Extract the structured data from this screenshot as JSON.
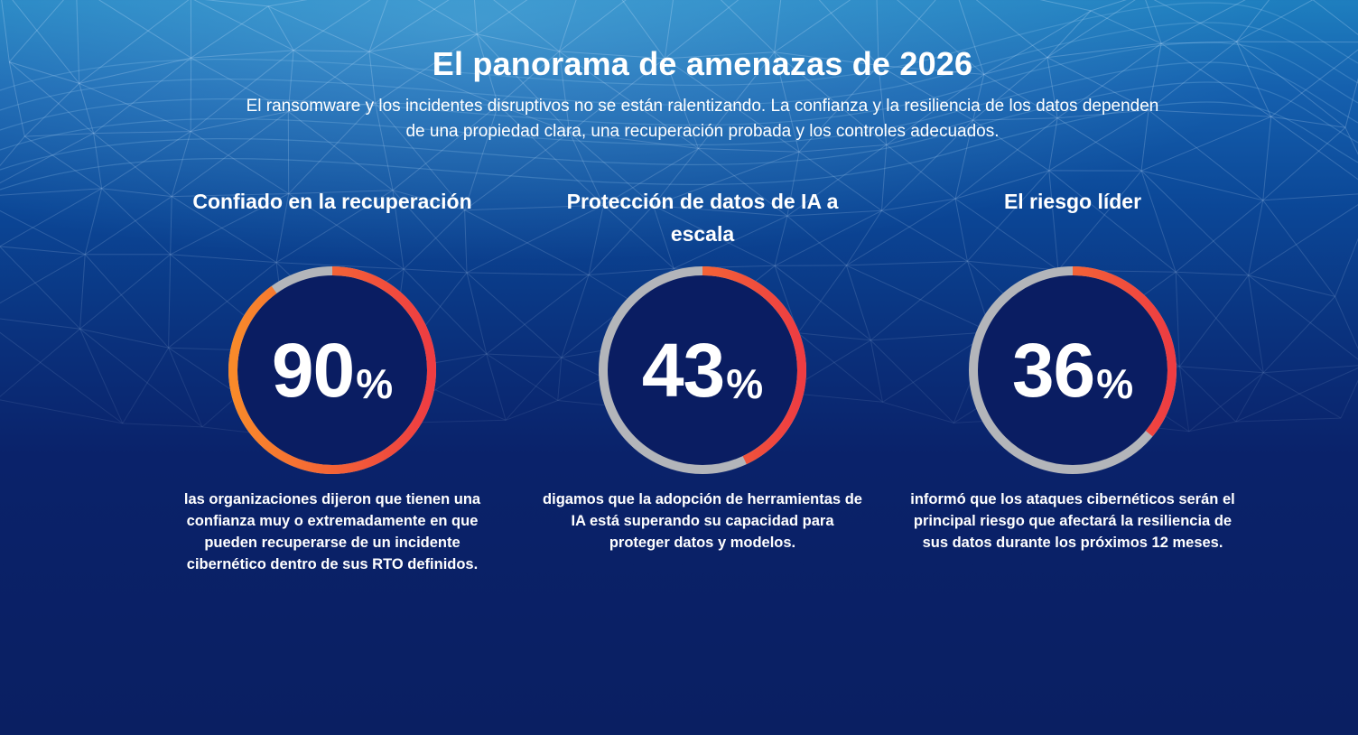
{
  "header": {
    "title": "El panorama de amenazas de 2026",
    "subtitle": "El ransomware y los incidentes disruptivos no se están ralentizando. La confianza y la resiliencia de los datos dependen de una propiedad clara, una recuperación probada y los controles adecuados."
  },
  "colors": {
    "background_top": "#1e7fbf",
    "background_bottom": "#0a1f62",
    "ring_inner": "#0a1d62",
    "ring_track": "#b3b5ba",
    "ring_progress_start": "#f98a2a",
    "ring_progress_end": "#ee3c42",
    "text": "#ffffff"
  },
  "chart_data": [
    {
      "type": "pie",
      "title": "Confiado en la recuperación",
      "value": 90,
      "unit": "%",
      "description": "las organizaciones dijeron que tienen una confianza muy o extremadamente en que pueden recuperarse de un incidente cibernético dentro de sus RTO definidos."
    },
    {
      "type": "pie",
      "title": "Protección de datos de IA a escala",
      "value": 43,
      "unit": "%",
      "description": "digamos que la adopción de herramientas de IA está superando su capacidad para proteger datos y modelos."
    },
    {
      "type": "pie",
      "title": "El riesgo líder",
      "value": 36,
      "unit": "%",
      "description": "informó que los ataques cibernéticos serán el principal riesgo que afectará la resiliencia de sus datos durante los próximos 12 meses."
    }
  ]
}
